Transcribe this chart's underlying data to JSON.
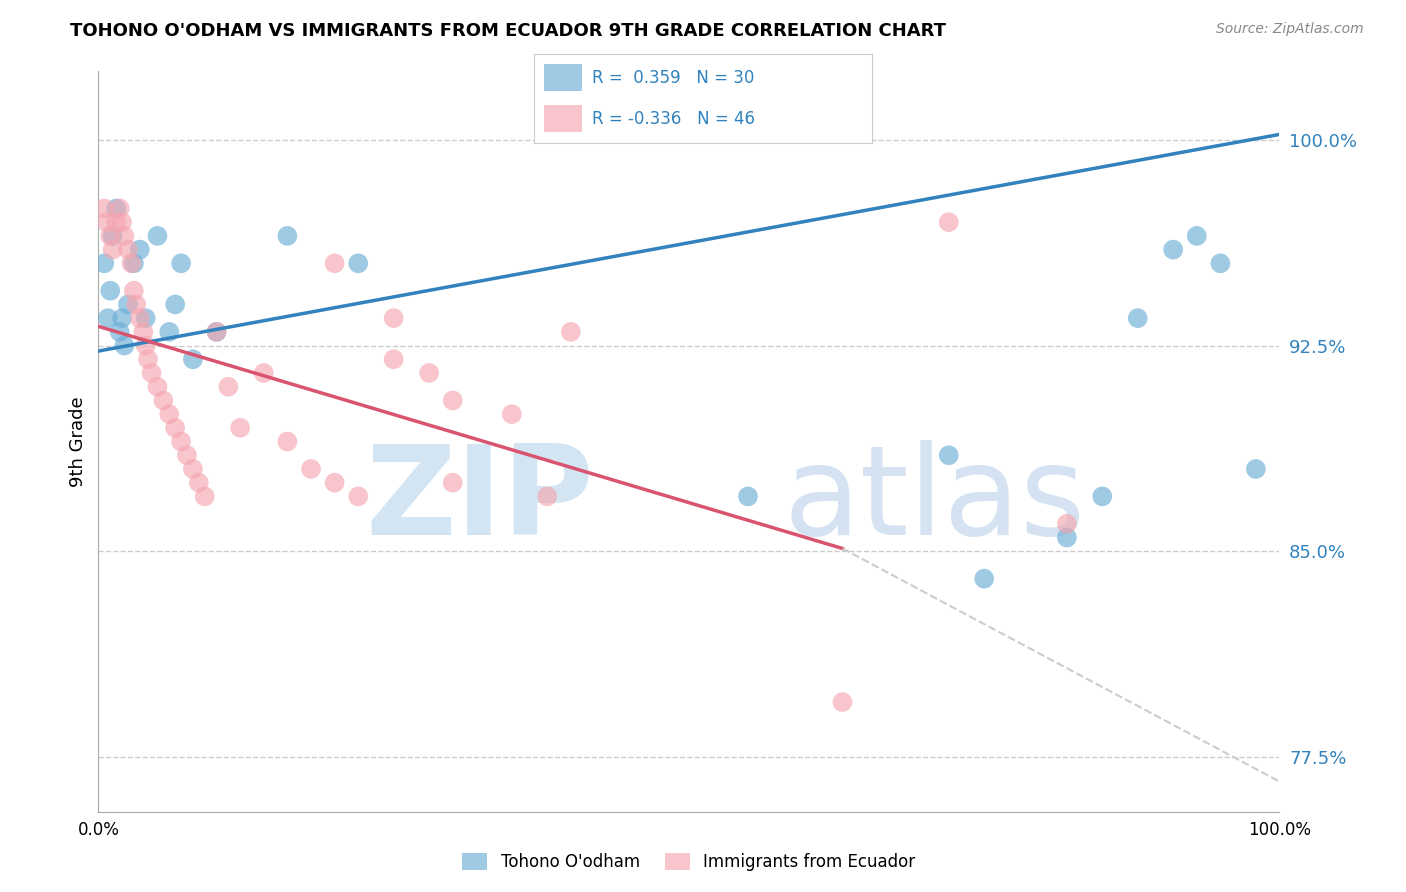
{
  "title": "TOHONO O'ODHAM VS IMMIGRANTS FROM ECUADOR 9TH GRADE CORRELATION CHART",
  "source": "Source: ZipAtlas.com",
  "ylabel": "9th Grade",
  "xlim": [
    0.0,
    1.0
  ],
  "ylim": [
    0.755,
    1.025
  ],
  "yticks": [
    0.775,
    0.85,
    0.925,
    1.0
  ],
  "ytick_labels": [
    "77.5%",
    "85.0%",
    "92.5%",
    "100.0%"
  ],
  "xtick_labels": [
    "0.0%",
    "100.0%"
  ],
  "blue_R": 0.359,
  "blue_N": 30,
  "pink_R": -0.336,
  "pink_N": 46,
  "legend_label_blue": "Tohono O'odham",
  "legend_label_pink": "Immigrants from Ecuador",
  "blue_color": "#6baed6",
  "pink_color": "#f4a6b0",
  "blue_line_color": "#3182bd",
  "pink_line_color": "#d9546e",
  "bg_color": "#ffffff",
  "grid_color": "#cccccc",
  "blue_scatter_x": [
    0.005,
    0.008,
    0.01,
    0.012,
    0.015,
    0.018,
    0.02,
    0.022,
    0.025,
    0.03,
    0.035,
    0.04,
    0.05,
    0.06,
    0.065,
    0.07,
    0.08,
    0.1,
    0.16,
    0.22,
    0.55,
    0.72,
    0.75,
    0.82,
    0.85,
    0.88,
    0.91,
    0.93,
    0.95,
    0.98
  ],
  "blue_scatter_y": [
    0.955,
    0.935,
    0.945,
    0.965,
    0.975,
    0.93,
    0.935,
    0.925,
    0.94,
    0.955,
    0.96,
    0.935,
    0.965,
    0.93,
    0.94,
    0.955,
    0.92,
    0.93,
    0.965,
    0.955,
    0.87,
    0.885,
    0.84,
    0.855,
    0.87,
    0.935,
    0.96,
    0.965,
    0.955,
    0.88
  ],
  "pink_scatter_x": [
    0.005,
    0.007,
    0.01,
    0.012,
    0.015,
    0.018,
    0.02,
    0.022,
    0.025,
    0.028,
    0.03,
    0.032,
    0.035,
    0.038,
    0.04,
    0.042,
    0.045,
    0.05,
    0.055,
    0.06,
    0.065,
    0.07,
    0.075,
    0.08,
    0.085,
    0.09,
    0.1,
    0.11,
    0.12,
    0.14,
    0.16,
    0.18,
    0.2,
    0.22,
    0.25,
    0.28,
    0.3,
    0.35,
    0.38,
    0.4,
    0.2,
    0.25,
    0.3,
    0.63,
    0.72,
    0.82
  ],
  "pink_scatter_y": [
    0.975,
    0.97,
    0.965,
    0.96,
    0.97,
    0.975,
    0.97,
    0.965,
    0.96,
    0.955,
    0.945,
    0.94,
    0.935,
    0.93,
    0.925,
    0.92,
    0.915,
    0.91,
    0.905,
    0.9,
    0.895,
    0.89,
    0.885,
    0.88,
    0.875,
    0.87,
    0.93,
    0.91,
    0.895,
    0.915,
    0.89,
    0.88,
    0.875,
    0.87,
    0.92,
    0.915,
    0.905,
    0.9,
    0.87,
    0.93,
    0.955,
    0.935,
    0.875,
    0.795,
    0.97,
    0.86
  ],
  "watermark_zip_color": "#c8dff0",
  "watermark_atlas_color": "#b8cfe8"
}
